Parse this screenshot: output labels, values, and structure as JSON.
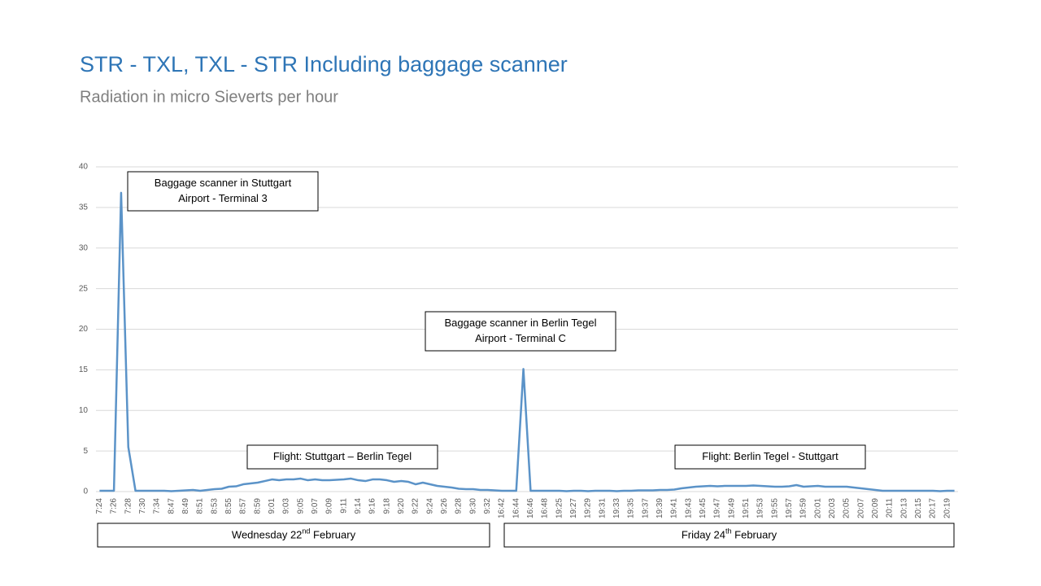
{
  "chart_data": {
    "type": "line",
    "title": "STR - TXL, TXL - STR Including baggage scanner",
    "subtitle": "Radiation in micro Sieverts per hour",
    "categories": [
      "7:24",
      null,
      "7:26",
      null,
      "7:28",
      null,
      "7:30",
      null,
      "7:34",
      null,
      "8:47",
      null,
      "8:49",
      null,
      "8:51",
      null,
      "8:53",
      null,
      "8:55",
      null,
      "8:57",
      null,
      "8:59",
      null,
      "9:01",
      null,
      "9:03",
      null,
      "9:05",
      null,
      "9:07",
      null,
      "9:09",
      null,
      "9:11",
      null,
      "9:14",
      null,
      "9:16",
      null,
      "9:18",
      null,
      "9:20",
      null,
      "9:22",
      null,
      "9:24",
      null,
      "9:26",
      null,
      "9:28",
      null,
      "9:30",
      null,
      "9:32",
      null,
      "16:42",
      null,
      "16:44",
      null,
      "16:46",
      null,
      "16:48",
      null,
      "19:25",
      null,
      "19:27",
      null,
      "19:29",
      null,
      "19:31",
      null,
      "19:33",
      null,
      "19:35",
      null,
      "19:37",
      null,
      "19:39",
      null,
      "19:41",
      null,
      "19:43",
      null,
      "19:45",
      null,
      "19:47",
      null,
      "19:49",
      null,
      "19:51",
      null,
      "19:53",
      null,
      "19:55",
      null,
      "19:57",
      null,
      "19:59",
      null,
      "20:01",
      null,
      "20:03",
      null,
      "20:05",
      null,
      "20:07",
      null,
      "20:09",
      null,
      "20:11",
      null,
      "20:13",
      null,
      "20:15",
      null,
      "20:17",
      null,
      "20:19",
      null
    ],
    "series": [
      {
        "name": "Radiation",
        "color": "#5b93c8",
        "values": [
          0.1,
          0.1,
          0.1,
          36.8,
          5.5,
          0.1,
          0.1,
          0.1,
          0.1,
          0.1,
          0.05,
          0.1,
          0.15,
          0.2,
          0.1,
          0.2,
          0.3,
          0.35,
          0.6,
          0.65,
          0.9,
          1.0,
          1.1,
          1.3,
          1.5,
          1.4,
          1.5,
          1.5,
          1.6,
          1.4,
          1.5,
          1.4,
          1.4,
          1.45,
          1.5,
          1.6,
          1.4,
          1.3,
          1.5,
          1.5,
          1.4,
          1.2,
          1.3,
          1.2,
          0.9,
          1.1,
          0.9,
          0.7,
          0.6,
          0.5,
          0.35,
          0.3,
          0.3,
          0.2,
          0.2,
          0.15,
          0.1,
          0.1,
          0.1,
          15.1,
          0.1,
          0.1,
          0.1,
          0.1,
          0.1,
          0.05,
          0.1,
          0.1,
          0.05,
          0.1,
          0.1,
          0.1,
          0.05,
          0.1,
          0.1,
          0.15,
          0.15,
          0.15,
          0.2,
          0.2,
          0.25,
          0.4,
          0.5,
          0.6,
          0.65,
          0.7,
          0.65,
          0.7,
          0.7,
          0.7,
          0.7,
          0.75,
          0.7,
          0.65,
          0.6,
          0.6,
          0.65,
          0.8,
          0.6,
          0.65,
          0.7,
          0.6,
          0.6,
          0.6,
          0.6,
          0.5,
          0.4,
          0.3,
          0.2,
          0.1,
          0.1,
          0.1,
          0.1,
          0.1,
          0.1,
          0.1,
          0.1,
          0.05,
          0.1,
          0.1
        ]
      }
    ],
    "ylim": [
      0,
      40
    ],
    "yticks": [
      0,
      5,
      10,
      15,
      20,
      25,
      30,
      35,
      40
    ],
    "grid": true,
    "annotations": [
      {
        "lines": [
          "Baggage scanner in Stuttgart",
          "Airport  - Terminal 3"
        ]
      },
      {
        "lines": [
          "Baggage scanner in Berlin Tegel",
          "Airport  - Terminal C"
        ]
      },
      {
        "lines": [
          "Flight: Stuttgart – Berlin Tegel"
        ]
      },
      {
        "lines": [
          "Flight: Berlin Tegel - Stuttgart"
        ]
      }
    ],
    "day_labels": [
      {
        "text": "Wednesday 22",
        "sup": "nd",
        "rest": " February"
      },
      {
        "text": "Friday 24",
        "sup": "th",
        "rest": " February"
      }
    ]
  }
}
